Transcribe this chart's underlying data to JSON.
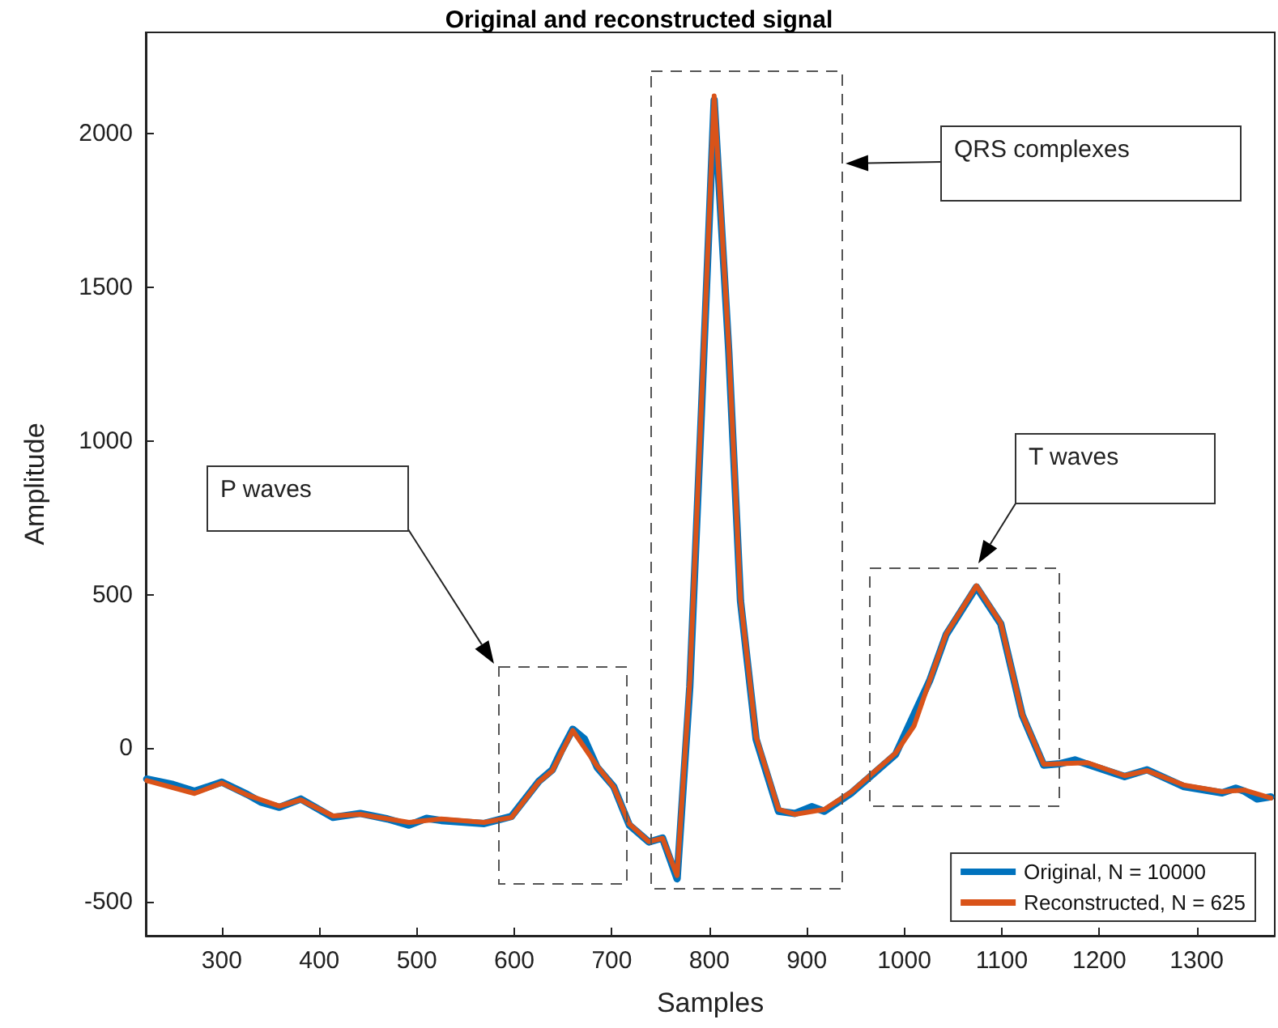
{
  "chart_data": {
    "type": "line",
    "title": "Original and reconstructed signal",
    "xlabel": "Samples",
    "ylabel": "Amplitude",
    "xlim": [
      222,
      1380
    ],
    "xticks": [
      300,
      400,
      500,
      600,
      700,
      800,
      900,
      1000,
      1100,
      1200,
      1300
    ],
    "ylim": [
      -610,
      2330
    ],
    "yticks": [
      -500,
      0,
      500,
      1000,
      1500,
      2000
    ],
    "legend": "bottom right",
    "grid": false,
    "marker": "none",
    "line_style": "solid",
    "annotations": [
      "P waves",
      "QRS complexes",
      "T waves"
    ],
    "series": [
      {
        "name": "Original, N = 10000",
        "color": "#0072bd",
        "x": [
          223,
          250,
          272,
          300,
          326,
          340,
          359,
          381,
          414,
          442,
          470,
          492,
          510,
          525,
          569,
          597,
          625,
          639,
          648,
          660,
          672,
          685,
          702,
          718,
          738,
          752,
          767,
          780,
          792,
          805,
          820,
          832,
          848,
          871,
          888,
          905,
          918,
          946,
          991,
          1026,
          1043,
          1074,
          1099,
          1121,
          1143,
          1160,
          1175,
          1188,
          1226,
          1249,
          1287,
          1326,
          1340,
          1349,
          1362,
          1376
        ],
        "values": [
          -100,
          -118,
          -140,
          -110,
          -150,
          -175,
          -192,
          -165,
          -225,
          -212,
          -230,
          -250,
          -228,
          -235,
          -245,
          -222,
          -108,
          -70,
          -10,
          62,
          30,
          -62,
          -125,
          -250,
          -305,
          -292,
          -425,
          200,
          1100,
          2110,
          1290,
          480,
          30,
          -205,
          -212,
          -190,
          -205,
          -145,
          -20,
          220,
          370,
          525,
          405,
          108,
          -55,
          -50,
          -38,
          -52,
          -92,
          -70,
          -125,
          -145,
          -130,
          -140,
          -165,
          -158
        ]
      },
      {
        "name": "Reconstructed, N = 625",
        "color": "#d95319",
        "x": [
          223,
          272,
          300,
          326,
          359,
          381,
          414,
          442,
          492,
          525,
          569,
          597,
          625,
          639,
          660,
          685,
          702,
          718,
          738,
          752,
          767,
          780,
          792,
          805,
          820,
          832,
          848,
          871,
          888,
          918,
          946,
          991,
          1010,
          1026,
          1043,
          1074,
          1099,
          1121,
          1143,
          1188,
          1226,
          1249,
          1287,
          1326,
          1349,
          1376
        ],
        "values": [
          -105,
          -147,
          -113,
          -152,
          -188,
          -168,
          -220,
          -215,
          -241,
          -230,
          -241,
          -225,
          -110,
          -73,
          58,
          -58,
          -126,
          -246,
          -304,
          -293,
          -414,
          220,
          1120,
          2123,
          1304,
          487,
          37,
          -199,
          -215,
          -199,
          -141,
          -16,
          73,
          220,
          372,
          529,
          408,
          110,
          -52,
          -47,
          -89,
          -73,
          -120,
          -141,
          -136,
          -162
        ]
      }
    ]
  }
}
